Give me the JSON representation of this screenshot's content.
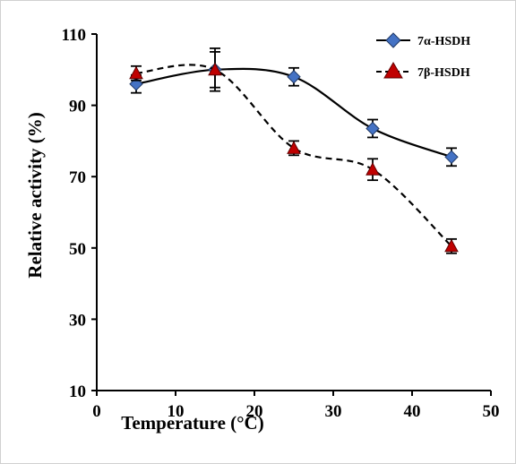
{
  "chart_data": {
    "type": "line",
    "title": "",
    "xlabel": "Temperature (°C)",
    "ylabel": "Relative activity (%)",
    "xlim": [
      0,
      50
    ],
    "ylim": [
      10,
      110
    ],
    "x_ticks": [
      0,
      10,
      20,
      30,
      40,
      50
    ],
    "y_ticks": [
      10,
      30,
      50,
      70,
      90,
      110
    ],
    "x_tick_labels": [
      "0",
      "10",
      "20",
      "30",
      "40",
      "50"
    ],
    "y_tick_labels": [
      "10",
      "30",
      "50",
      "70",
      "90",
      "110"
    ],
    "grid": false,
    "legend_position": "top-right",
    "x": [
      5,
      15,
      25,
      35,
      45
    ],
    "series": [
      {
        "name": "7α-HSDH",
        "values": [
          96,
          100,
          98,
          83.5,
          75.5
        ],
        "errors": [
          2.5,
          5,
          2.5,
          2.5,
          2.5
        ],
        "marker": "diamond",
        "line_style": "solid",
        "marker_color": "#4472c4"
      },
      {
        "name": "7β-HSDH",
        "values": [
          99,
          100,
          78,
          72,
          50.5
        ],
        "errors": [
          2,
          6,
          2,
          3,
          2
        ],
        "marker": "triangle",
        "line_style": "dashed",
        "marker_color": "#c00000"
      }
    ]
  }
}
